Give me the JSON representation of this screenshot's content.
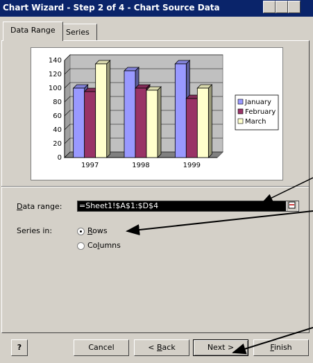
{
  "window": {
    "title": "Chart Wizard - Step 2 of 4 - Chart Source Data"
  },
  "tabs": [
    {
      "label": "Data Range",
      "active": true
    },
    {
      "label": "Series",
      "active": false
    }
  ],
  "chart_data": {
    "type": "bar",
    "categories": [
      "1997",
      "1998",
      "1999"
    ],
    "series": [
      {
        "name": "January",
        "values": [
          100,
          125,
          135
        ],
        "color": "#9999ff"
      },
      {
        "name": "February",
        "values": [
          95,
          100,
          85
        ],
        "color": "#993366"
      },
      {
        "name": "March",
        "values": [
          135,
          97,
          100
        ],
        "color": "#ffffcc"
      }
    ],
    "ylim": [
      0,
      140
    ],
    "y_ticks": [
      "0",
      "20",
      "40",
      "60",
      "80",
      "100",
      "120",
      "140"
    ],
    "grid": true,
    "legend": "right",
    "style": "3d-column"
  },
  "data_range": {
    "label_prefix": "",
    "label_accel": "D",
    "label_rest": "ata range:",
    "value": "=Sheet1!$A$1:$D$4"
  },
  "series_in": {
    "label": "Series in:",
    "options": [
      {
        "pre": "",
        "accel": "R",
        "post": "ows",
        "checked": true
      },
      {
        "pre": "Co",
        "accel": "l",
        "post": "umns",
        "checked": false
      }
    ]
  },
  "buttons": {
    "help": "?",
    "cancel": "Cancel",
    "back": {
      "pre": "< ",
      "accel": "B",
      "post": "ack"
    },
    "next": "Next >",
    "finish": {
      "pre": "",
      "accel": "F",
      "post": "inish"
    }
  }
}
